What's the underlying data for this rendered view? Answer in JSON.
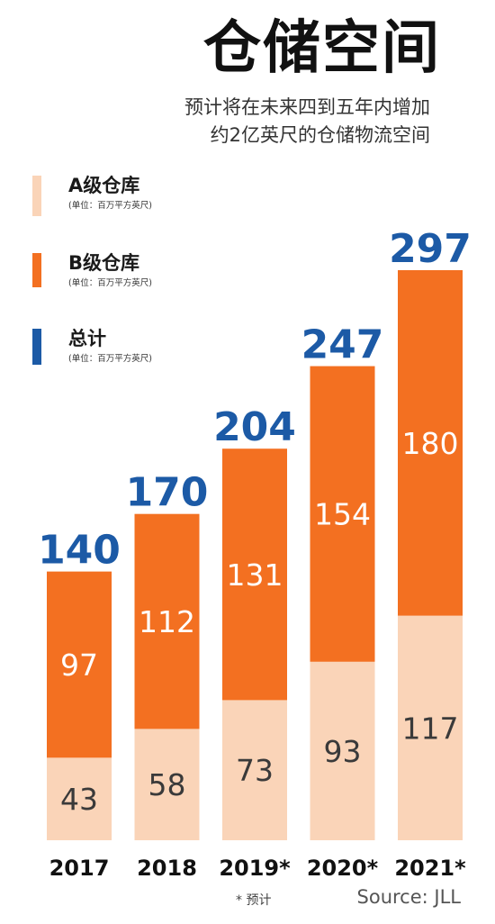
{
  "header": {
    "title": "仓储空间",
    "subtitle_line1": "预计将在未来四到五年内增加",
    "subtitle_line2": "约2亿英尺的仓储物流空间"
  },
  "legend": [
    {
      "label": "A级仓库",
      "unit": "(单位：百万平方英尺)",
      "color": "#fad4b8"
    },
    {
      "label": "B级仓库",
      "unit": "(单位：百万平方英尺)",
      "color": "#f37021"
    },
    {
      "label": "总计",
      "unit": "(单位：百万平方英尺)",
      "color": "#1c5aa6"
    }
  ],
  "chart_data": {
    "type": "bar",
    "stacked": true,
    "categories": [
      "2017",
      "2018",
      "2019*",
      "2020*",
      "2021*"
    ],
    "series": [
      {
        "name": "A级仓库",
        "values": [
          43,
          58,
          73,
          93,
          117
        ],
        "color": "#fad4b8"
      },
      {
        "name": "B级仓库",
        "values": [
          97,
          112,
          131,
          154,
          180
        ],
        "color": "#f37021"
      }
    ],
    "totals": [
      140,
      170,
      204,
      247,
      297
    ],
    "total_color": "#1c5aa6",
    "title": "仓储空间",
    "xlabel": "",
    "ylabel": "",
    "ylim": [
      0,
      297
    ],
    "grid": false,
    "legend_position": "top-left"
  },
  "footnote": "* 预计",
  "source": "Source: JLL"
}
